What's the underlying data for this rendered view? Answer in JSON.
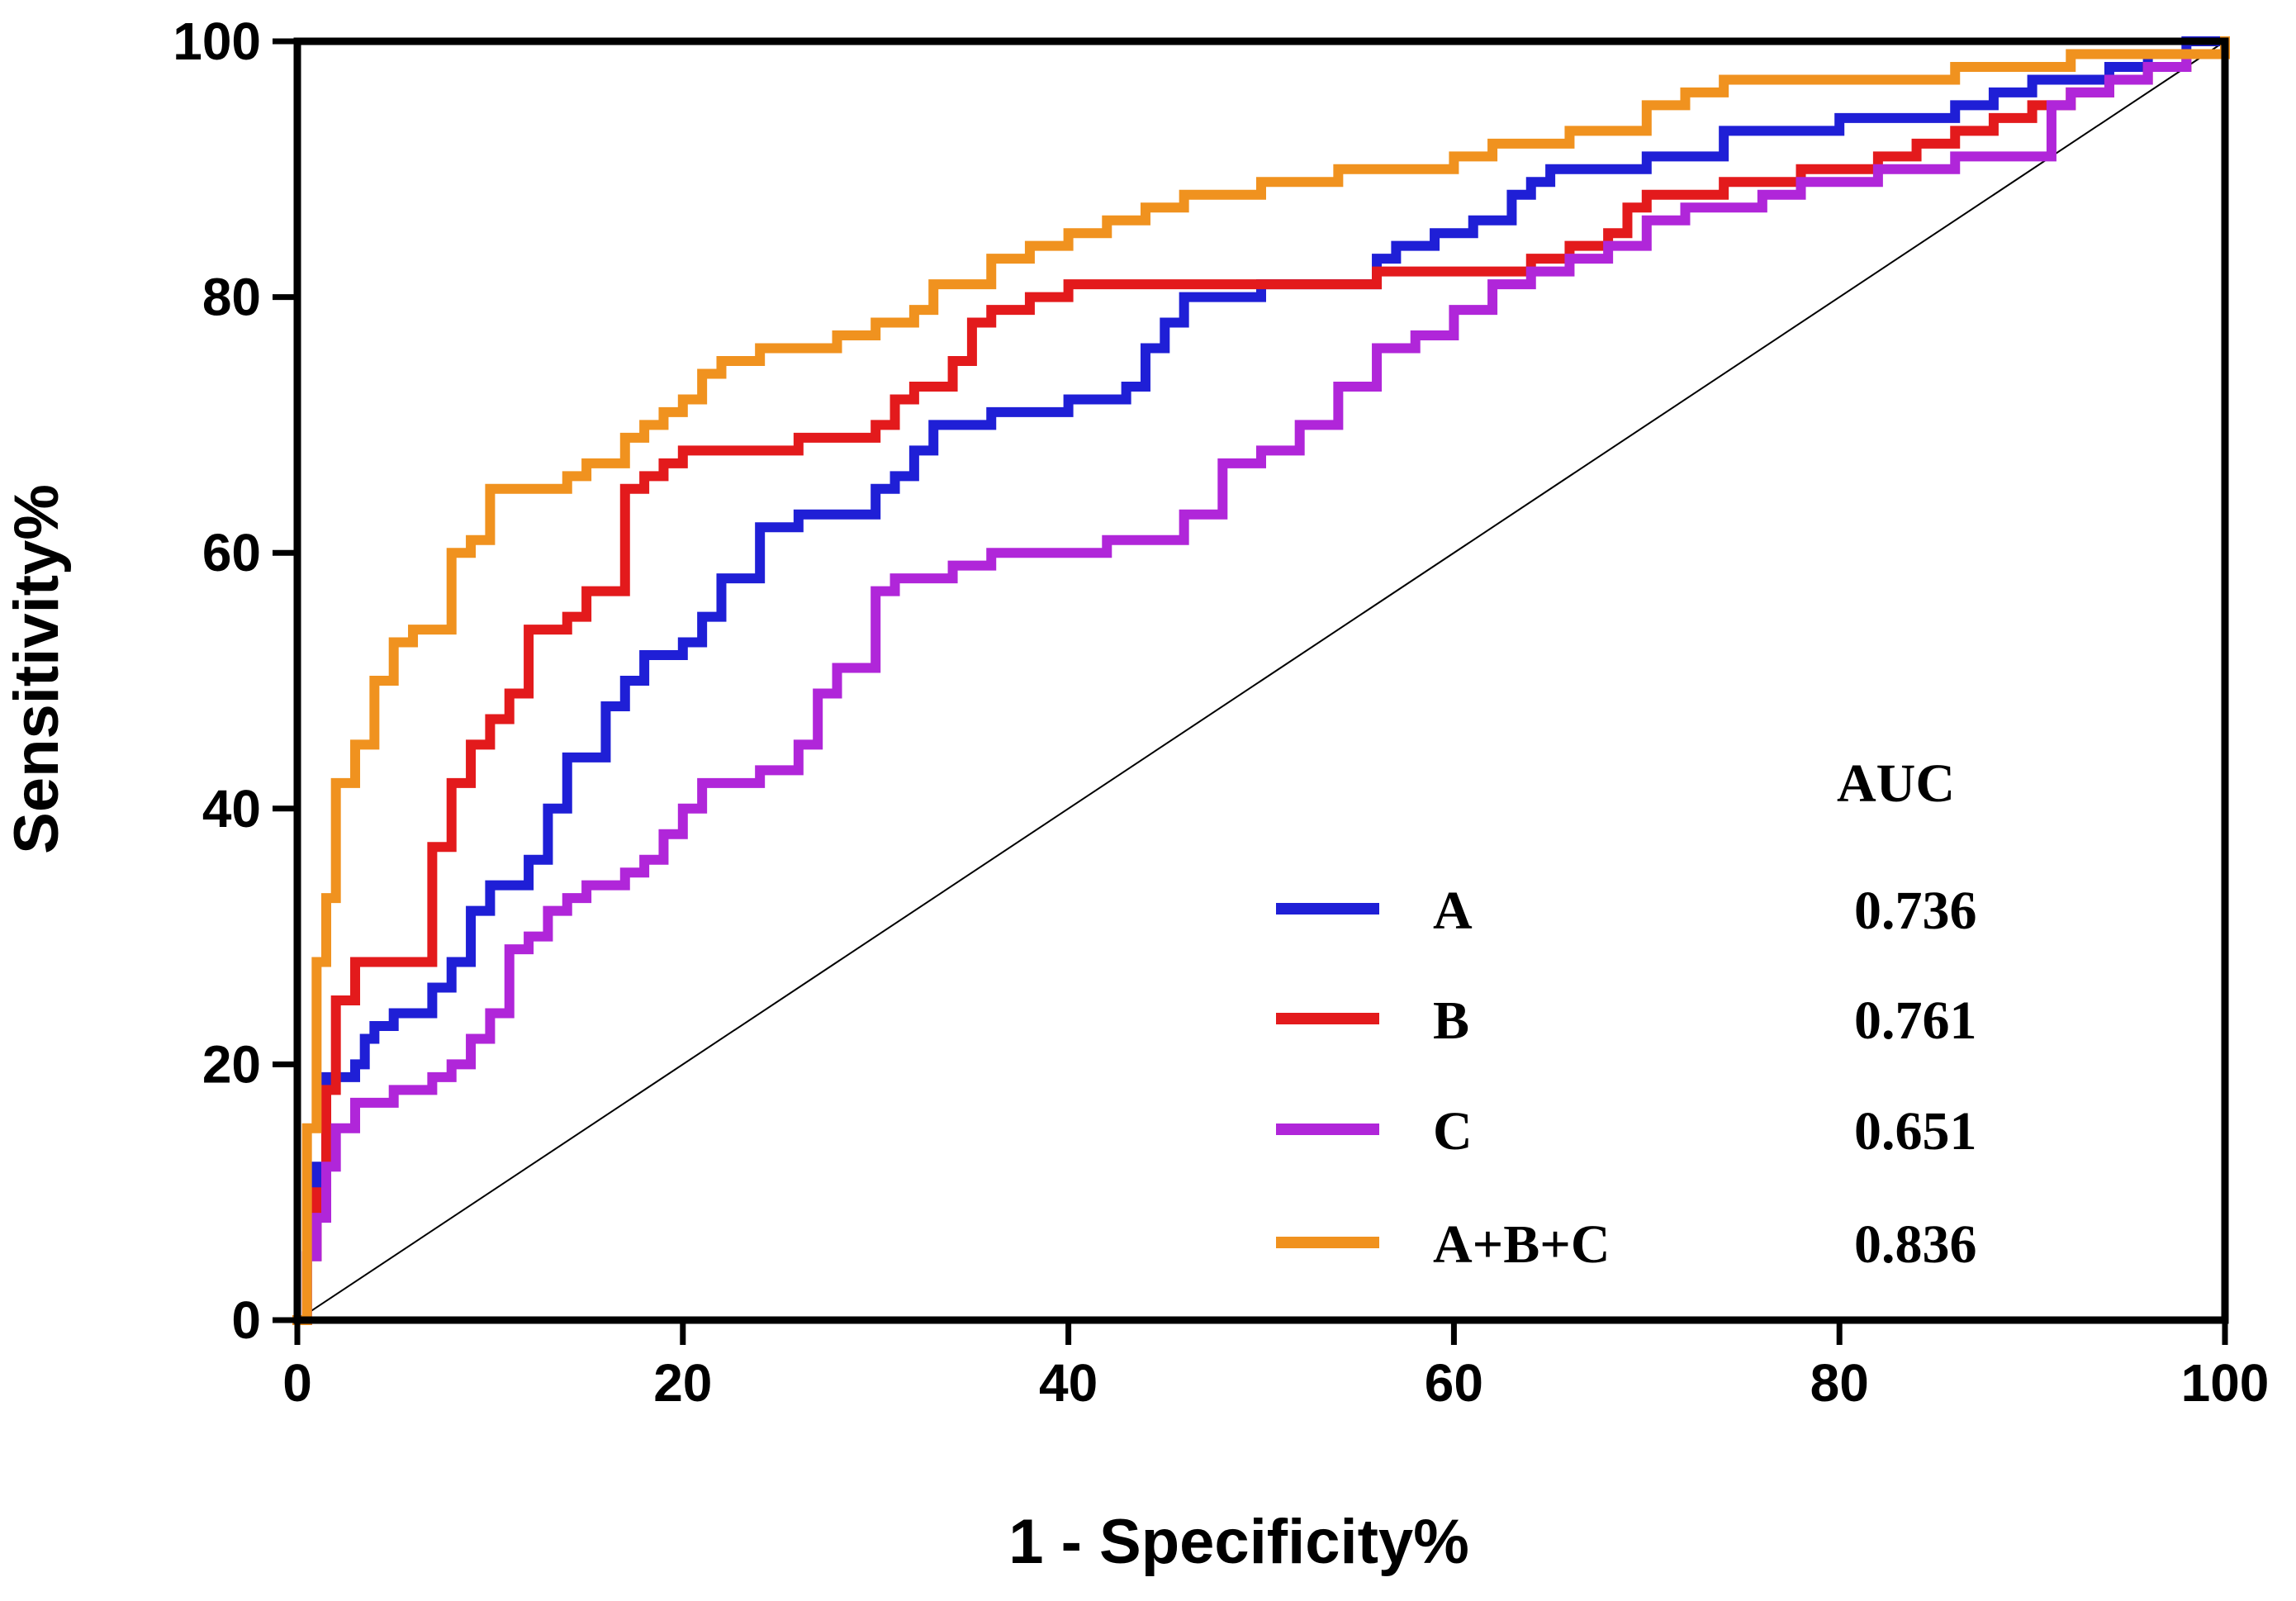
{
  "chart_data": {
    "type": "line",
    "title": "",
    "xlabel": "1 - Specificity%",
    "ylabel": "Sensitivity%",
    "xlim": [
      0,
      100
    ],
    "ylim": [
      0,
      100
    ],
    "xticks": [
      0,
      20,
      40,
      60,
      80,
      100
    ],
    "yticks": [
      0,
      20,
      40,
      60,
      80,
      100
    ],
    "grid": false,
    "legend_position": "bottom-right",
    "legend_header": "AUC",
    "reference_line": {
      "x": [
        0,
        100
      ],
      "y": [
        0,
        100
      ],
      "color": "#000000"
    },
    "series": [
      {
        "name": "A",
        "auc": "0.736",
        "color": "#1f1fd6",
        "x": [
          0,
          0.5,
          1,
          1.5,
          3,
          3.5,
          4,
          5,
          6,
          7,
          8,
          9,
          10,
          11,
          12,
          13,
          14,
          15,
          16,
          17,
          18,
          20,
          21,
          22,
          24,
          25,
          26,
          28,
          30,
          31,
          32,
          33,
          35,
          36,
          38,
          40,
          41,
          43,
          44,
          45,
          46,
          48,
          50,
          52,
          54,
          56,
          57,
          58,
          59,
          60,
          61,
          62,
          63,
          64,
          65,
          68,
          70,
          72,
          74,
          75,
          76,
          78,
          80,
          82,
          84,
          86,
          88,
          90,
          92,
          94,
          96,
          98,
          100
        ],
        "y": [
          0,
          5,
          12,
          19,
          20,
          22,
          23,
          24,
          24,
          26,
          28,
          32,
          34,
          34,
          36,
          40,
          44,
          44,
          48,
          50,
          52,
          53,
          55,
          58,
          62,
          62,
          63,
          63,
          65,
          66,
          68,
          70,
          70,
          71,
          71,
          72,
          72,
          73,
          76,
          78,
          80,
          80,
          81,
          81,
          81,
          83,
          84,
          84,
          85,
          85,
          86,
          86,
          88,
          89,
          90,
          90,
          91,
          91,
          93,
          93,
          93,
          93,
          94,
          94,
          94,
          95,
          96,
          97,
          97,
          98,
          99,
          100,
          100
        ]
      },
      {
        "name": "B",
        "auc": "0.761",
        "color": "#e31a1c",
        "x": [
          0,
          0.5,
          1,
          1.5,
          2,
          3,
          4,
          5,
          6,
          6.5,
          7,
          8,
          9,
          10,
          11,
          12,
          13,
          14,
          15,
          16,
          17,
          18,
          19,
          20,
          22,
          24,
          26,
          28,
          30,
          31,
          32,
          33,
          34,
          35,
          36,
          38,
          40,
          42,
          44,
          46,
          48,
          50,
          52,
          54,
          56,
          58,
          60,
          62,
          64,
          66,
          68,
          69,
          70,
          72,
          74,
          76,
          78,
          80,
          82,
          84,
          86,
          88,
          90,
          92,
          94,
          96,
          98,
          100
        ],
        "y": [
          0,
          5,
          10,
          18,
          25,
          28,
          28,
          28,
          28,
          28,
          37,
          42,
          45,
          47,
          49,
          54,
          54,
          55,
          57,
          57,
          65,
          66,
          67,
          68,
          68,
          68,
          69,
          69,
          70,
          72,
          73,
          73,
          75,
          78,
          79,
          80,
          81,
          81,
          81,
          81,
          81,
          81,
          81,
          81,
          82,
          82,
          82,
          82,
          83,
          84,
          85,
          87,
          88,
          88,
          89,
          89,
          90,
          90,
          91,
          92,
          93,
          94,
          95,
          96,
          97,
          98,
          99,
          100
        ]
      },
      {
        "name": "C",
        "auc": "0.651",
        "color": "#b026d9",
        "x": [
          0,
          0.5,
          1,
          1.5,
          2,
          3,
          4,
          5,
          6,
          7,
          8,
          9,
          10,
          11,
          12,
          13,
          14,
          15,
          16,
          17,
          18,
          19,
          20,
          21,
          22,
          24,
          26,
          27,
          28,
          29,
          30,
          31,
          32,
          34,
          36,
          38,
          40,
          42,
          44,
          46,
          48,
          50,
          52,
          54,
          56,
          58,
          60,
          62,
          63,
          64,
          66,
          68,
          70,
          72,
          74,
          76,
          78,
          80,
          82,
          84,
          86,
          88,
          90,
          91,
          92,
          94,
          96,
          98,
          100
        ],
        "y": [
          0,
          5,
          8,
          12,
          15,
          17,
          17,
          18,
          18,
          19,
          20,
          22,
          24,
          29,
          30,
          32,
          33,
          34,
          34,
          35,
          36,
          38,
          40,
          42,
          42,
          43,
          45,
          49,
          51,
          51,
          57,
          58,
          58,
          59,
          60,
          60,
          60,
          61,
          61,
          63,
          67,
          68,
          70,
          73,
          76,
          77,
          79,
          81,
          81,
          82,
          83,
          84,
          86,
          87,
          87,
          88,
          89,
          89,
          90,
          90,
          91,
          91,
          91,
          95,
          96,
          97,
          98,
          99,
          100
        ]
      },
      {
        "name": "A+B+C",
        "auc": "0.836",
        "color": "#f0921f",
        "x": [
          0,
          0.5,
          1,
          1.5,
          2,
          3,
          4,
          5,
          6,
          7,
          8,
          9,
          10,
          11,
          12,
          14,
          15,
          16,
          17,
          18,
          19,
          20,
          21,
          22,
          24,
          26,
          28,
          30,
          31,
          32,
          33,
          34,
          36,
          38,
          40,
          41,
          42,
          44,
          45,
          46,
          48,
          50,
          52,
          54,
          56,
          58,
          60,
          61,
          62,
          64,
          66,
          68,
          70,
          72,
          74,
          76,
          78,
          80,
          82,
          84,
          86,
          88,
          90,
          92,
          94,
          96,
          98,
          100
        ],
        "y": [
          0,
          15,
          28,
          33,
          42,
          45,
          50,
          53,
          54,
          54,
          60,
          61,
          65,
          65,
          65,
          66,
          67,
          67,
          69,
          70,
          71,
          72,
          74,
          75,
          76,
          76,
          77,
          78,
          78,
          79,
          81,
          81,
          83,
          84,
          85,
          85,
          86,
          87,
          87,
          88,
          88,
          89,
          89,
          90,
          90,
          90,
          91,
          91,
          92,
          92,
          93,
          93,
          95,
          96,
          97,
          97,
          97,
          97,
          97,
          97,
          98,
          98,
          98,
          99,
          99,
          99,
          99,
          100
        ]
      }
    ]
  }
}
